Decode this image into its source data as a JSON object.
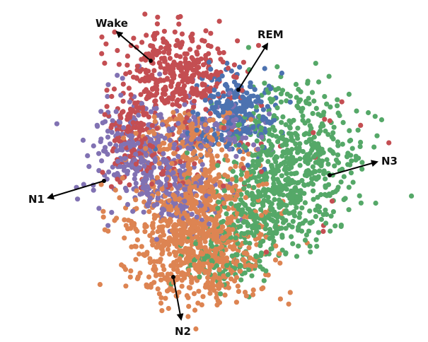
{
  "chart_data": {
    "type": "scatter",
    "title": "",
    "xlabel": "",
    "ylabel": "",
    "axes_visible": false,
    "grid": false,
    "xlim": [
      -50,
      50
    ],
    "ylim": [
      -40,
      40
    ],
    "series": [
      {
        "key": "wake",
        "color": "#c44e52",
        "count": 560,
        "clusters": [
          {
            "cx": -9,
            "cy": 23,
            "rx": 12,
            "ry": 9,
            "w": 0.62
          },
          {
            "cx": -19,
            "cy": 10,
            "rx": 6,
            "ry": 9,
            "w": 0.22
          },
          {
            "cx": -13,
            "cy": 2,
            "rx": 9,
            "ry": 6,
            "w": 0.1
          },
          {
            "cx": 5,
            "cy": 5,
            "rx": 28,
            "ry": 18,
            "w": 0.06
          }
        ]
      },
      {
        "key": "rem",
        "color": "#4c72b0",
        "count": 280,
        "clusters": [
          {
            "cx": 5,
            "cy": 14,
            "rx": 8,
            "ry": 8,
            "w": 0.85
          },
          {
            "cx": -1,
            "cy": 8,
            "rx": 10,
            "ry": 6,
            "w": 0.15
          }
        ]
      },
      {
        "key": "n1",
        "color": "#8172b3",
        "count": 520,
        "clusters": [
          {
            "cx": -16,
            "cy": 4,
            "rx": 12,
            "ry": 12,
            "w": 0.6
          },
          {
            "cx": -8,
            "cy": -6,
            "rx": 10,
            "ry": 8,
            "w": 0.25
          },
          {
            "cx": 2,
            "cy": 10,
            "rx": 10,
            "ry": 6,
            "w": 0.15
          }
        ]
      },
      {
        "key": "n2",
        "color": "#dd8452",
        "count": 1100,
        "clusters": [
          {
            "cx": -4,
            "cy": -18,
            "rx": 15,
            "ry": 12,
            "w": 0.6
          },
          {
            "cx": -3,
            "cy": -6,
            "rx": 12,
            "ry": 9,
            "w": 0.25
          },
          {
            "cx": -6,
            "cy": 8,
            "rx": 12,
            "ry": 6,
            "w": 0.15
          }
        ]
      },
      {
        "key": "n3",
        "color": "#55a868",
        "count": 860,
        "clusters": [
          {
            "cx": 20,
            "cy": 4,
            "rx": 14,
            "ry": 14,
            "w": 0.55
          },
          {
            "cx": 12,
            "cy": -9,
            "rx": 12,
            "ry": 9,
            "w": 0.3
          },
          {
            "cx": 4,
            "cy": -20,
            "rx": 10,
            "ry": 8,
            "w": 0.15
          }
        ]
      }
    ],
    "annotations": [
      {
        "key": "wake",
        "text": "Wake"
      },
      {
        "key": "rem",
        "text": "REM"
      },
      {
        "key": "n1",
        "text": "N1"
      },
      {
        "key": "n2",
        "text": "N2"
      },
      {
        "key": "n3",
        "text": "N3"
      }
    ]
  }
}
